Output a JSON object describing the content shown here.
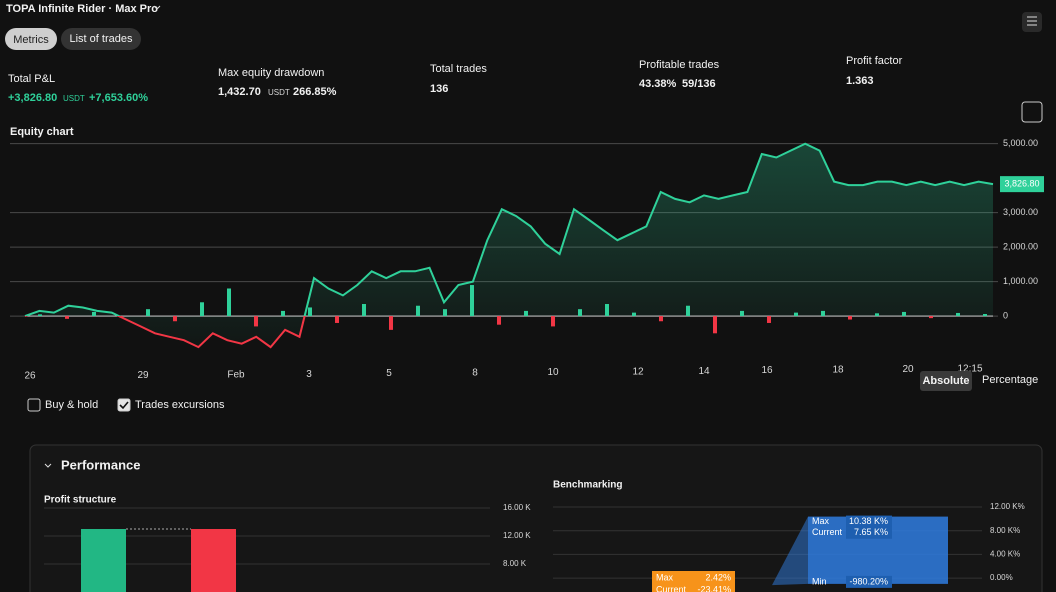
{
  "header": {
    "title": "TOPA Infinite Rider · Max Pro"
  },
  "tabs": [
    "Metrics",
    "List of trades"
  ],
  "metrics": [
    {
      "label": "Total P&L",
      "value": "+3,826.80",
      "unit": "USDT",
      "percent": "+7,653.60%"
    },
    {
      "label": "Max equity drawdown",
      "value": "1,432.70",
      "unit": "USDT",
      "percent": "266.85%"
    },
    {
      "label": "Total trades",
      "value": "136"
    },
    {
      "label": "Profitable trades",
      "value": "43.38%",
      "percent": "59/136"
    },
    {
      "label": "Profit factor",
      "value": "1.363"
    }
  ],
  "equity_chart": {
    "type": "line",
    "title": "Equity chart",
    "categories": [
      "26",
      "29",
      "Feb",
      "3",
      "5",
      "8",
      "10",
      "12",
      "14",
      "16",
      "18",
      "20",
      "12:15"
    ],
    "values": [
      0,
      150,
      100,
      300,
      250,
      150,
      100,
      -100,
      -300,
      -500,
      -600,
      -700,
      -900,
      -500,
      -700,
      -800,
      -600,
      -900,
      -400,
      -600,
      1100,
      800,
      600,
      900,
      1300,
      1100,
      1300,
      1300,
      1400,
      400,
      900,
      1000,
      2200,
      3100,
      2900,
      2600,
      2100,
      1800,
      3100,
      2800,
      2500,
      2200,
      2400,
      2600,
      3600,
      3400,
      3300,
      3500,
      3400,
      3500,
      3600,
      4700,
      4600,
      4800,
      5000,
      4800,
      3900,
      3800,
      3800,
      3900,
      3900,
      3800,
      3900,
      3800,
      3900,
      3800,
      3900,
      3826.8
    ],
    "trade_pnl": [
      50,
      -80,
      120,
      -40,
      200,
      -150,
      400,
      800,
      -300,
      150,
      250,
      -200,
      350,
      -400,
      300,
      200,
      900,
      -250,
      150,
      -300,
      200,
      350,
      100,
      -150,
      300,
      -500,
      150,
      -200,
      100,
      150,
      -100,
      80,
      120,
      -60,
      90,
      60
    ],
    "up_color": "#2fd19a",
    "down_color": "#f23645",
    "ylim": [
      -1100,
      5600
    ],
    "yticks": [
      0,
      {
        "value": 1000,
        "label": "1,000.00"
      },
      {
        "value": 2000,
        "label": "2,000.00"
      },
      {
        "value": 3000,
        "label": "3,000.00"
      },
      {
        "value": 5000,
        "label": "5,000.00"
      }
    ],
    "grid": true,
    "last_value_label": "3,826.80"
  },
  "toggles": [
    "Absolute",
    "Percentage"
  ],
  "checkboxes": [
    {
      "label": "Buy & hold",
      "checked": false
    },
    {
      "label": "Trades excursions",
      "checked": true
    }
  ],
  "performance": {
    "title": "Performance",
    "profit_structure": {
      "type": "bar",
      "title": "Profit structure",
      "values": [
        13000,
        13000
      ],
      "colors": [
        "#22b784",
        "#f23645"
      ],
      "ylim": [
        0,
        16000
      ],
      "yticks": [
        {
          "value": 16000,
          "label": "16.00 K"
        },
        {
          "value": 12000,
          "label": "12.00 K"
        },
        {
          "value": 8000,
          "label": "8.00 K"
        }
      ]
    },
    "benchmarking": {
      "title": "Benchmarking",
      "ylim": [
        -1000,
        12000
      ],
      "yticks": [
        {
          "value": 12000,
          "label": "12.00 K%"
        },
        {
          "value": 8000,
          "label": "8.00 K%"
        },
        {
          "value": 4000,
          "label": "4.00 K%"
        },
        {
          "value": 0,
          "label": "0.00%"
        }
      ],
      "labels": {
        "max": "Max",
        "current": "Current",
        "min": "Min"
      },
      "strategy": {
        "color": "#2f7de1",
        "values": [
          10380,
          7650,
          -980.2
        ],
        "value_labels": [
          "10.38 K%",
          "7.65 K%",
          "-980.20%"
        ]
      },
      "buy_hold": {
        "color": "#f7931a",
        "values": [
          2.42,
          -23.41
        ],
        "value_labels": [
          "2.42%",
          "-23.41%"
        ]
      }
    }
  }
}
